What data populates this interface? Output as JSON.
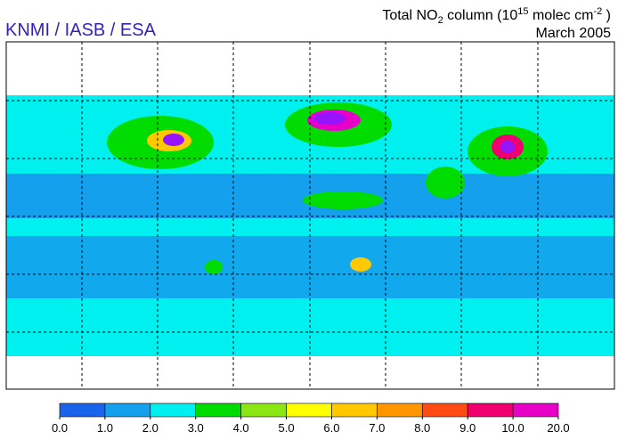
{
  "header": {
    "source": "KNMI / IASB / ESA",
    "title": [
      "Total NO",
      "2",
      " column (10",
      "15",
      " molec cm",
      "-2",
      " )"
    ],
    "date": "March 2005"
  },
  "colorbar": {
    "colors": [
      "#1a64ec",
      "#14a0ec",
      "#00f0f0",
      "#00dc00",
      "#8ce614",
      "#ffff00",
      "#ffc800",
      "#ff9600",
      "#ff4b14",
      "#f0006e",
      "#e600c8",
      "#9614ff"
    ],
    "ticks": [
      {
        "value": 0,
        "label": "0.0"
      },
      {
        "value": 1,
        "label": "1.0"
      },
      {
        "value": 2,
        "label": "2.0"
      },
      {
        "value": 3,
        "label": "3.0"
      },
      {
        "value": 4,
        "label": "4.0"
      },
      {
        "value": 5,
        "label": "5.0"
      },
      {
        "value": 6,
        "label": "6.0"
      },
      {
        "value": 7,
        "label": "7.0"
      },
      {
        "value": 8,
        "label": "8.0"
      },
      {
        "value": 9,
        "label": "9.0"
      },
      {
        "value": 10,
        "label": "10.0"
      },
      {
        "value": 20,
        "label": "20.0"
      }
    ]
  }
}
